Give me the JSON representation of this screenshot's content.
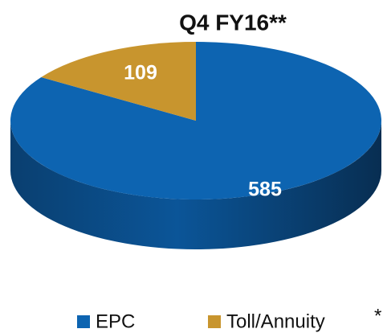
{
  "chart_data": {
    "type": "pie",
    "title": "Q4 FY16**",
    "categories": [
      "EPC",
      "Toll/Annuity"
    ],
    "values": [
      585,
      109
    ],
    "colors": [
      "#0d64b1",
      "#c8952e"
    ],
    "legend": "bottom",
    "annotation": "*"
  }
}
